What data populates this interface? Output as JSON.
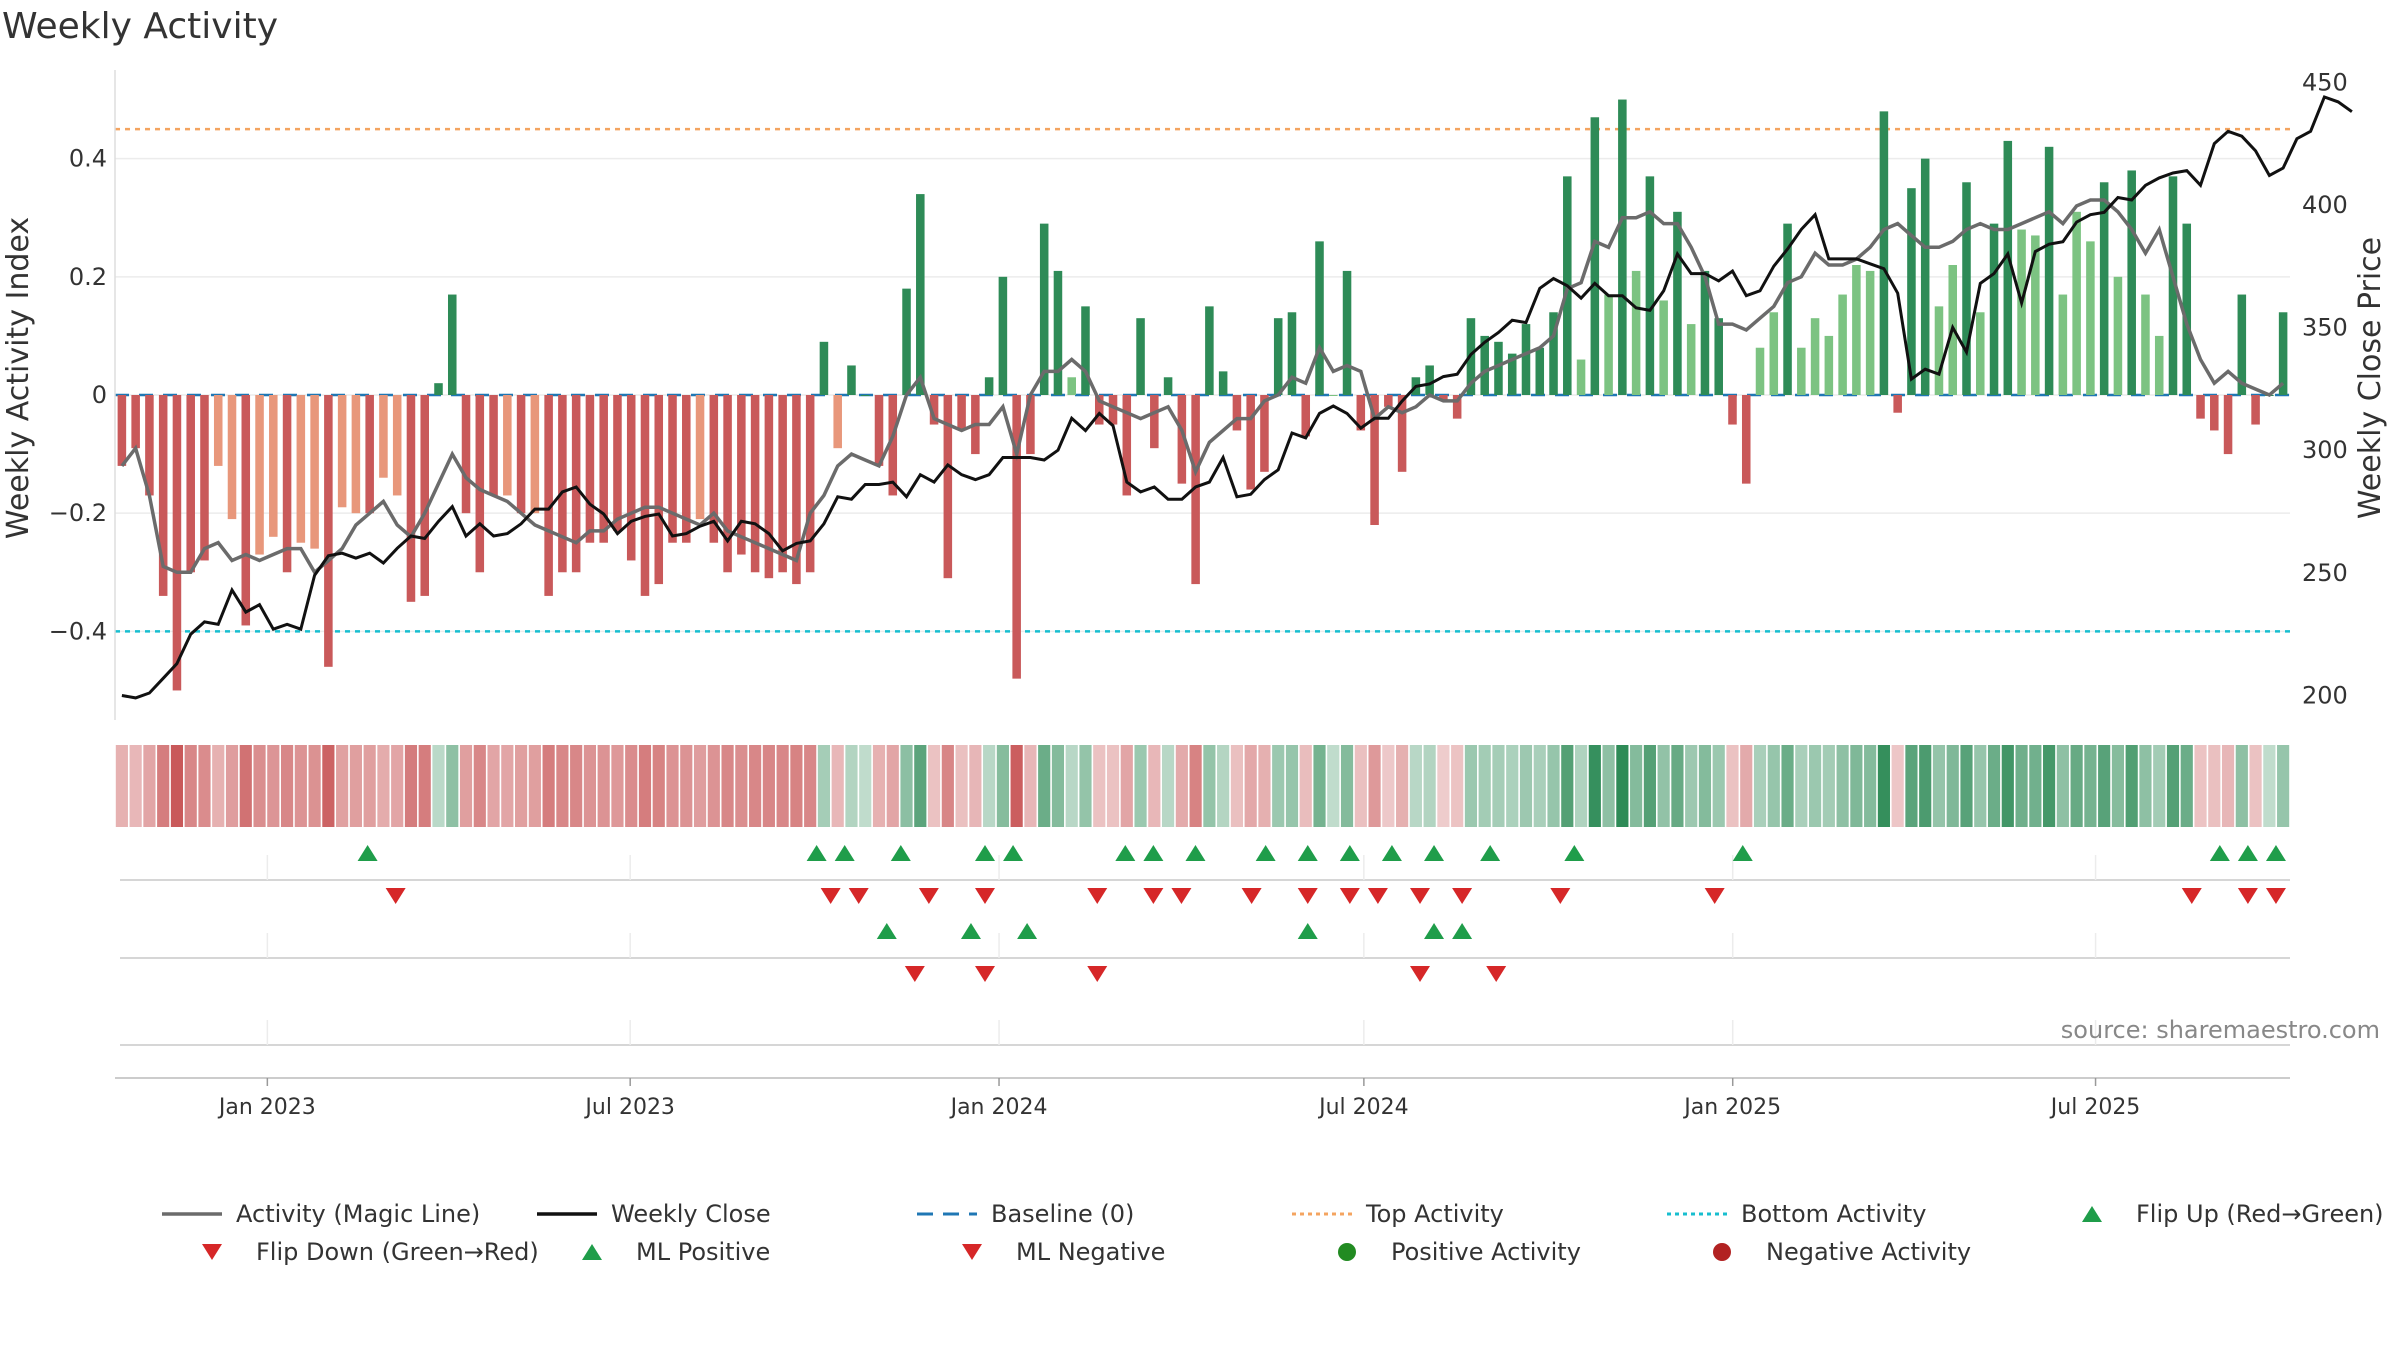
{
  "title": "Weekly Activity",
  "source": "source: sharemaestro.com",
  "colors": {
    "pos_dark": "#2e8b57",
    "pos_light": "#7cc382",
    "neg_dark": "#c9595a",
    "neg_light": "#e8977b",
    "magic": "#6b6b6b",
    "close": "#111111",
    "baseline": "#1f77b4",
    "top": "#f4a460",
    "bottom": "#17becf",
    "flip_up": "#1f9d4a",
    "flip_down": "#d62728",
    "pos_dot": "#228b22",
    "neg_dot": "#b22222"
  },
  "chart_data": {
    "type": "bar",
    "title": "Weekly Activity",
    "ylabel": "Weekly Activity Index",
    "y2label": "Weekly Close Price",
    "ylim": [
      -0.55,
      0.55
    ],
    "y2lim": [
      190,
      455
    ],
    "yticks": [
      0.4,
      0.2,
      0,
      -0.2,
      -0.4
    ],
    "ytick_labels": [
      "0.4",
      "0.2",
      "0",
      "−0.2",
      "−0.4"
    ],
    "y2ticks": [
      450,
      400,
      350,
      300,
      250,
      200
    ],
    "x_start": "2022-10-17",
    "x_end": "2025-10-06",
    "xticks": [
      {
        "date": "2023-01-01",
        "label": "Jan 2023"
      },
      {
        "date": "2023-07-01",
        "label": "Jul 2023"
      },
      {
        "date": "2024-01-01",
        "label": "Jan 2024"
      },
      {
        "date": "2024-07-01",
        "label": "Jul 2024"
      },
      {
        "date": "2025-01-01",
        "label": "Jan 2025"
      },
      {
        "date": "2025-07-01",
        "label": "Jul 2025"
      }
    ],
    "top_activity": 0.45,
    "bottom_activity": -0.4,
    "activity": [
      -0.12,
      -0.09,
      -0.17,
      -0.34,
      -0.5,
      -0.3,
      -0.28,
      -0.12,
      -0.21,
      -0.39,
      -0.27,
      -0.24,
      -0.3,
      -0.25,
      -0.26,
      -0.46,
      -0.19,
      -0.2,
      -0.2,
      -0.14,
      -0.17,
      -0.35,
      -0.34,
      0.02,
      0.17,
      -0.2,
      -0.3,
      -0.17,
      -0.17,
      -0.2,
      -0.2,
      -0.34,
      -0.3,
      -0.3,
      -0.25,
      -0.25,
      -0.23,
      -0.28,
      -0.34,
      -0.32,
      -0.25,
      -0.25,
      -0.21,
      -0.25,
      -0.3,
      -0.27,
      -0.3,
      -0.31,
      -0.3,
      -0.32,
      -0.3,
      0.09,
      -0.09,
      0.05,
      0.0,
      -0.12,
      -0.17,
      0.18,
      0.34,
      -0.05,
      -0.31,
      -0.06,
      -0.1,
      0.03,
      0.2,
      -0.48,
      -0.1,
      0.29,
      0.21,
      0.03,
      0.15,
      -0.05,
      -0.05,
      -0.17,
      0.13,
      -0.09,
      0.03,
      -0.15,
      -0.32,
      0.15,
      0.04,
      -0.06,
      -0.16,
      -0.13,
      0.13,
      0.14,
      -0.07,
      0.26,
      0.0,
      0.21,
      -0.06,
      -0.22,
      -0.02,
      -0.13,
      0.03,
      0.05,
      -0.01,
      -0.04,
      0.13,
      0.1,
      0.09,
      0.07,
      0.12,
      0.08,
      0.14,
      0.37,
      0.06,
      0.47,
      0.17,
      0.5,
      0.21,
      0.37,
      0.16,
      0.31,
      0.12,
      0.21,
      0.13,
      -0.05,
      -0.15,
      0.08,
      0.14,
      0.29,
      0.08,
      0.13,
      0.1,
      0.17,
      0.22,
      0.21,
      0.48,
      -0.03,
      0.35,
      0.4,
      0.15,
      0.22,
      0.36,
      0.14,
      0.29,
      0.43,
      0.28,
      0.27,
      0.42,
      0.17,
      0.31,
      0.26,
      0.36,
      0.2,
      0.38,
      0.17,
      0.1,
      0.37,
      0.29,
      -0.04,
      -0.06,
      -0.1,
      0.17,
      -0.05,
      0.0,
      0.14
    ],
    "magic_line": [
      -0.12,
      -0.09,
      -0.17,
      -0.29,
      -0.3,
      -0.3,
      -0.26,
      -0.25,
      -0.28,
      -0.27,
      -0.28,
      -0.27,
      -0.26,
      -0.26,
      -0.3,
      -0.28,
      -0.26,
      -0.22,
      -0.2,
      -0.18,
      -0.22,
      -0.24,
      -0.2,
      -0.15,
      -0.1,
      -0.14,
      -0.16,
      -0.17,
      -0.18,
      -0.2,
      -0.22,
      -0.23,
      -0.24,
      -0.25,
      -0.23,
      -0.23,
      -0.21,
      -0.2,
      -0.19,
      -0.19,
      -0.2,
      -0.21,
      -0.22,
      -0.2,
      -0.23,
      -0.24,
      -0.25,
      -0.26,
      -0.27,
      -0.28,
      -0.2,
      -0.17,
      -0.12,
      -0.1,
      -0.11,
      -0.12,
      -0.07,
      0.0,
      0.03,
      -0.04,
      -0.05,
      -0.06,
      -0.05,
      -0.05,
      -0.02,
      -0.1,
      0.0,
      0.04,
      0.04,
      0.06,
      0.04,
      -0.01,
      -0.02,
      -0.03,
      -0.04,
      -0.03,
      -0.02,
      -0.06,
      -0.13,
      -0.08,
      -0.06,
      -0.04,
      -0.04,
      -0.01,
      0.0,
      0.03,
      0.02,
      0.08,
      0.04,
      0.05,
      0.04,
      -0.04,
      -0.02,
      -0.03,
      -0.02,
      0.0,
      -0.01,
      -0.01,
      0.02,
      0.04,
      0.05,
      0.06,
      0.07,
      0.08,
      0.1,
      0.18,
      0.19,
      0.26,
      0.25,
      0.3,
      0.3,
      0.31,
      0.29,
      0.29,
      0.25,
      0.2,
      0.12,
      0.12,
      0.11,
      0.13,
      0.15,
      0.19,
      0.2,
      0.24,
      0.22,
      0.22,
      0.23,
      0.25,
      0.28,
      0.29,
      0.27,
      0.25,
      0.25,
      0.26,
      0.28,
      0.29,
      0.28,
      0.28,
      0.29,
      0.3,
      0.31,
      0.29,
      0.32,
      0.33,
      0.33,
      0.31,
      0.28,
      0.24,
      0.28,
      0.2,
      0.12,
      0.06,
      0.02,
      0.04,
      0.02,
      0.01,
      0.0,
      0.02
    ],
    "weekly_close": [
      200,
      199,
      201,
      207,
      213,
      225,
      230,
      229,
      243,
      234,
      237,
      227,
      229,
      227,
      249,
      257,
      258,
      256,
      258,
      254,
      260,
      265,
      264,
      271,
      277,
      265,
      270,
      265,
      266,
      270,
      276,
      276,
      283,
      285,
      278,
      274,
      266,
      271,
      273,
      274,
      265,
      266,
      269,
      271,
      263,
      271,
      270,
      266,
      259,
      262,
      263,
      270,
      281,
      280,
      286,
      286,
      287,
      281,
      290,
      287,
      294,
      290,
      288,
      290,
      297,
      297,
      297,
      296,
      300,
      313,
      308,
      315,
      310,
      287,
      283,
      285,
      280,
      280,
      285,
      287,
      297,
      281,
      282,
      288,
      292,
      307,
      305,
      315,
      318,
      315,
      309,
      313,
      313,
      320,
      326,
      327,
      330,
      331,
      339,
      344,
      348,
      353,
      352,
      366,
      370,
      367,
      362,
      368,
      363,
      363,
      358,
      357,
      365,
      380,
      372,
      372,
      369,
      373,
      363,
      365,
      375,
      382,
      390,
      396,
      378,
      378,
      378,
      376,
      374,
      364,
      329,
      333,
      331,
      350,
      340,
      368,
      372,
      380,
      360,
      381,
      384,
      385,
      393,
      396,
      397,
      403,
      402,
      408,
      411,
      413,
      414,
      408,
      425,
      430,
      428,
      422,
      412,
      415,
      427,
      430,
      444,
      442,
      438
    ]
  },
  "signal_rows": [
    {
      "name": "flip-row",
      "up": [
        "2023-02-20",
        "2023-10-02",
        "2023-10-16",
        "2023-11-13",
        "2023-12-25",
        "2024-01-08",
        "2024-03-04",
        "2024-03-18",
        "2024-04-08",
        "2024-05-13",
        "2024-06-03",
        "2024-06-24",
        "2024-07-15",
        "2024-08-05",
        "2024-09-02",
        "2024-10-14",
        "2025-01-06",
        "2025-09-01",
        "2025-09-15",
        "2025-09-29"
      ],
      "down": [
        "2023-03-06",
        "2023-10-09",
        "2023-10-23",
        "2023-11-27",
        "2023-12-25",
        "2024-02-19",
        "2024-03-18",
        "2024-04-01",
        "2024-05-06",
        "2024-06-03",
        "2024-06-24",
        "2024-07-08",
        "2024-07-29",
        "2024-08-19",
        "2024-10-07",
        "2024-12-23",
        "2025-08-18",
        "2025-09-15",
        "2025-09-29"
      ]
    },
    {
      "name": "ml-row",
      "up": [
        "2023-11-06",
        "2023-12-18",
        "2024-01-15",
        "2024-06-03",
        "2024-08-05",
        "2024-08-19"
      ],
      "down": [
        "2023-11-20",
        "2023-12-25",
        "2024-02-19",
        "2024-07-29",
        "2024-09-05"
      ]
    },
    {
      "name": "activity-dot-row",
      "up": [],
      "down": []
    }
  ],
  "legend": [
    {
      "key": "magic",
      "label": "Activity (Magic Line)",
      "symbol": "line-solid"
    },
    {
      "key": "close",
      "label": "Weekly Close",
      "symbol": "line-solid"
    },
    {
      "key": "baseline",
      "label": "Baseline (0)",
      "symbol": "line-dashed"
    },
    {
      "key": "top",
      "label": "Top Activity",
      "symbol": "line-dotted"
    },
    {
      "key": "bottom",
      "label": "Bottom Activity",
      "symbol": "line-dotted"
    },
    {
      "key": "flip_up",
      "label": "Flip Up (Red→Green)",
      "symbol": "tri-up"
    },
    {
      "key": "flip_down",
      "label": "Flip Down (Green→Red)",
      "symbol": "tri-down"
    },
    {
      "key": "flip_up",
      "label": "ML Positive",
      "symbol": "tri-up"
    },
    {
      "key": "flip_down",
      "label": "ML Negative",
      "symbol": "tri-down"
    },
    {
      "key": "pos_dot",
      "label": "Positive Activity",
      "symbol": "dot"
    },
    {
      "key": "neg_dot",
      "label": "Negative Activity",
      "symbol": "dot"
    }
  ]
}
